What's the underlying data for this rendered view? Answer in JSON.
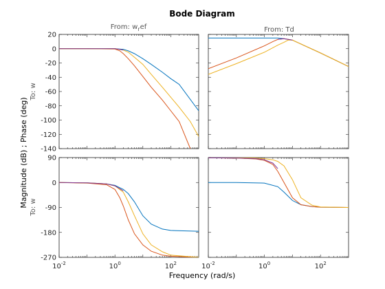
{
  "figure": {
    "title": "Bode Diagram",
    "xlabel": "Frequency  (rad/s)",
    "ylabel": "Magnitude (dB) ; Phase (deg)",
    "output_label": "To: w",
    "input_labels": [
      "From: w_ref",
      "From: Td"
    ],
    "x_ticks": [
      "10",
      "10",
      "10",
      "10",
      "10",
      "10"
    ],
    "x_exponents": [
      "-2",
      "0",
      "2",
      "-2",
      "0",
      "2"
    ],
    "mag_ticks": [
      "20",
      "0",
      "-20",
      "-40",
      "-60",
      "-80",
      "-100",
      "-120",
      "-140"
    ],
    "phase_ticks": [
      "90",
      "0",
      "-90",
      "-180",
      "-270"
    ]
  },
  "chart_data": {
    "type": "line",
    "title": "Bode Diagram",
    "xlabel": "Frequency  (rad/s)",
    "ylabel": "Magnitude (dB) ; Phase (deg)",
    "xscale": "log",
    "xlim": [
      0.01,
      1000
    ],
    "grid": false,
    "colors": [
      "#0072bd",
      "#d95319",
      "#edb120",
      "#7e2f8e"
    ],
    "subplots": [
      {
        "id": "mag-wref",
        "ylim": [
          -140,
          20
        ],
        "series": [
          {
            "x": [
              0.01,
              0.1,
              1,
              2,
              3,
              5,
              10,
              20,
              50,
              100,
              200,
              1000
            ],
            "y": [
              0,
              0,
              0,
              -1,
              -3,
              -7,
              -14,
              -22,
              -33,
              -42,
              -50,
              -87
            ]
          },
          {
            "x": [
              0.01,
              0.1,
              1,
              1.5,
              2,
              3,
              5,
              10,
              20,
              50,
              100,
              200,
              500
            ],
            "y": [
              0,
              0,
              -0.5,
              -3,
              -7,
              -14,
              -24,
              -39,
              -54,
              -72,
              -87,
              -102,
              -140
            ]
          },
          {
            "x": [
              0.01,
              0.1,
              1,
              2,
              3,
              5,
              10,
              20,
              50,
              100,
              200,
              500,
              1000
            ],
            "y": [
              0,
              0,
              0,
              -2,
              -5,
              -12,
              -22,
              -36,
              -54,
              -68,
              -82,
              -102,
              -123
            ]
          },
          {
            "x": [
              0.01,
              0.1,
              1,
              1.5,
              2
            ],
            "y": [
              0,
              0,
              0,
              -1,
              -2
            ]
          }
        ]
      },
      {
        "id": "mag-td",
        "ylim": [
          -140,
          20
        ],
        "series": [
          {
            "x": [
              0.01,
              0.1,
              1,
              3,
              5,
              7,
              10,
              100,
              1000
            ],
            "y": [
              15,
              15,
              15,
              15,
              14,
              13,
              12,
              -6,
              -25
            ]
          },
          {
            "x": [
              0.01,
              0.1,
              1,
              2,
              3,
              5,
              7,
              10,
              100,
              1000
            ],
            "y": [
              -28,
              -13,
              4,
              10,
              13,
              14,
              13,
              12,
              -6,
              -25
            ]
          },
          {
            "x": [
              0.01,
              0.1,
              1,
              3,
              5,
              7,
              10,
              100,
              1000
            ],
            "y": [
              -36,
              -21,
              -5,
              5,
              9,
              12,
              12,
              -6,
              -25
            ]
          },
          {
            "x": [
              3,
              5,
              7,
              10
            ],
            "y": [
              13,
              14,
              13,
              12
            ]
          }
        ]
      },
      {
        "id": "phase-wref",
        "ylim": [
          -270,
          90
        ],
        "series": [
          {
            "x": [
              0.01,
              0.1,
              0.5,
              1,
              2,
              3,
              5,
              10,
              20,
              50,
              100,
              1000
            ],
            "y": [
              0,
              -1,
              -5,
              -10,
              -25,
              -40,
              -70,
              -120,
              -150,
              -168,
              -173,
              -176
            ]
          },
          {
            "x": [
              0.01,
              0.1,
              0.5,
              1,
              1.5,
              2,
              3,
              5,
              10,
              20,
              50,
              100,
              1000
            ],
            "y": [
              0,
              -2,
              -8,
              -25,
              -55,
              -85,
              -135,
              -185,
              -225,
              -248,
              -262,
              -266,
              -270
            ]
          },
          {
            "x": [
              0.01,
              0.1,
              0.5,
              1,
              2,
              3,
              5,
              10,
              20,
              50,
              100,
              1000
            ],
            "y": [
              0,
              -1,
              -5,
              -12,
              -35,
              -70,
              -120,
              -185,
              -225,
              -250,
              -262,
              -270
            ]
          },
          {
            "x": [
              0.01,
              0.1,
              0.5,
              1,
              2
            ],
            "y": [
              0,
              -1,
              -5,
              -12,
              -30
            ]
          }
        ]
      },
      {
        "id": "phase-td",
        "ylim": [
          -270,
          90
        ],
        "series": [
          {
            "x": [
              0.01,
              0.1,
              1,
              3,
              5,
              10,
              20,
              50,
              100,
              1000
            ],
            "y": [
              0,
              0,
              -2,
              -15,
              -35,
              -65,
              -80,
              -87,
              -89,
              -90
            ]
          },
          {
            "x": [
              0.01,
              0.1,
              0.5,
              1,
              2,
              3,
              5,
              10,
              20,
              50,
              100,
              1000
            ],
            "y": [
              89,
              88,
              85,
              80,
              65,
              40,
              0,
              -55,
              -80,
              -87,
              -89,
              -90
            ]
          },
          {
            "x": [
              0.01,
              0.1,
              0.5,
              1,
              2,
              3,
              5,
              10,
              20,
              50,
              100,
              1000
            ],
            "y": [
              90,
              89,
              88,
              86,
              82,
              76,
              60,
              10,
              -55,
              -82,
              -88,
              -90
            ]
          },
          {
            "x": [
              0.01,
              0.1,
              0.5,
              1,
              2,
              3
            ],
            "y": [
              89,
              88,
              86,
              82,
              70,
              50
            ]
          }
        ]
      }
    ]
  }
}
